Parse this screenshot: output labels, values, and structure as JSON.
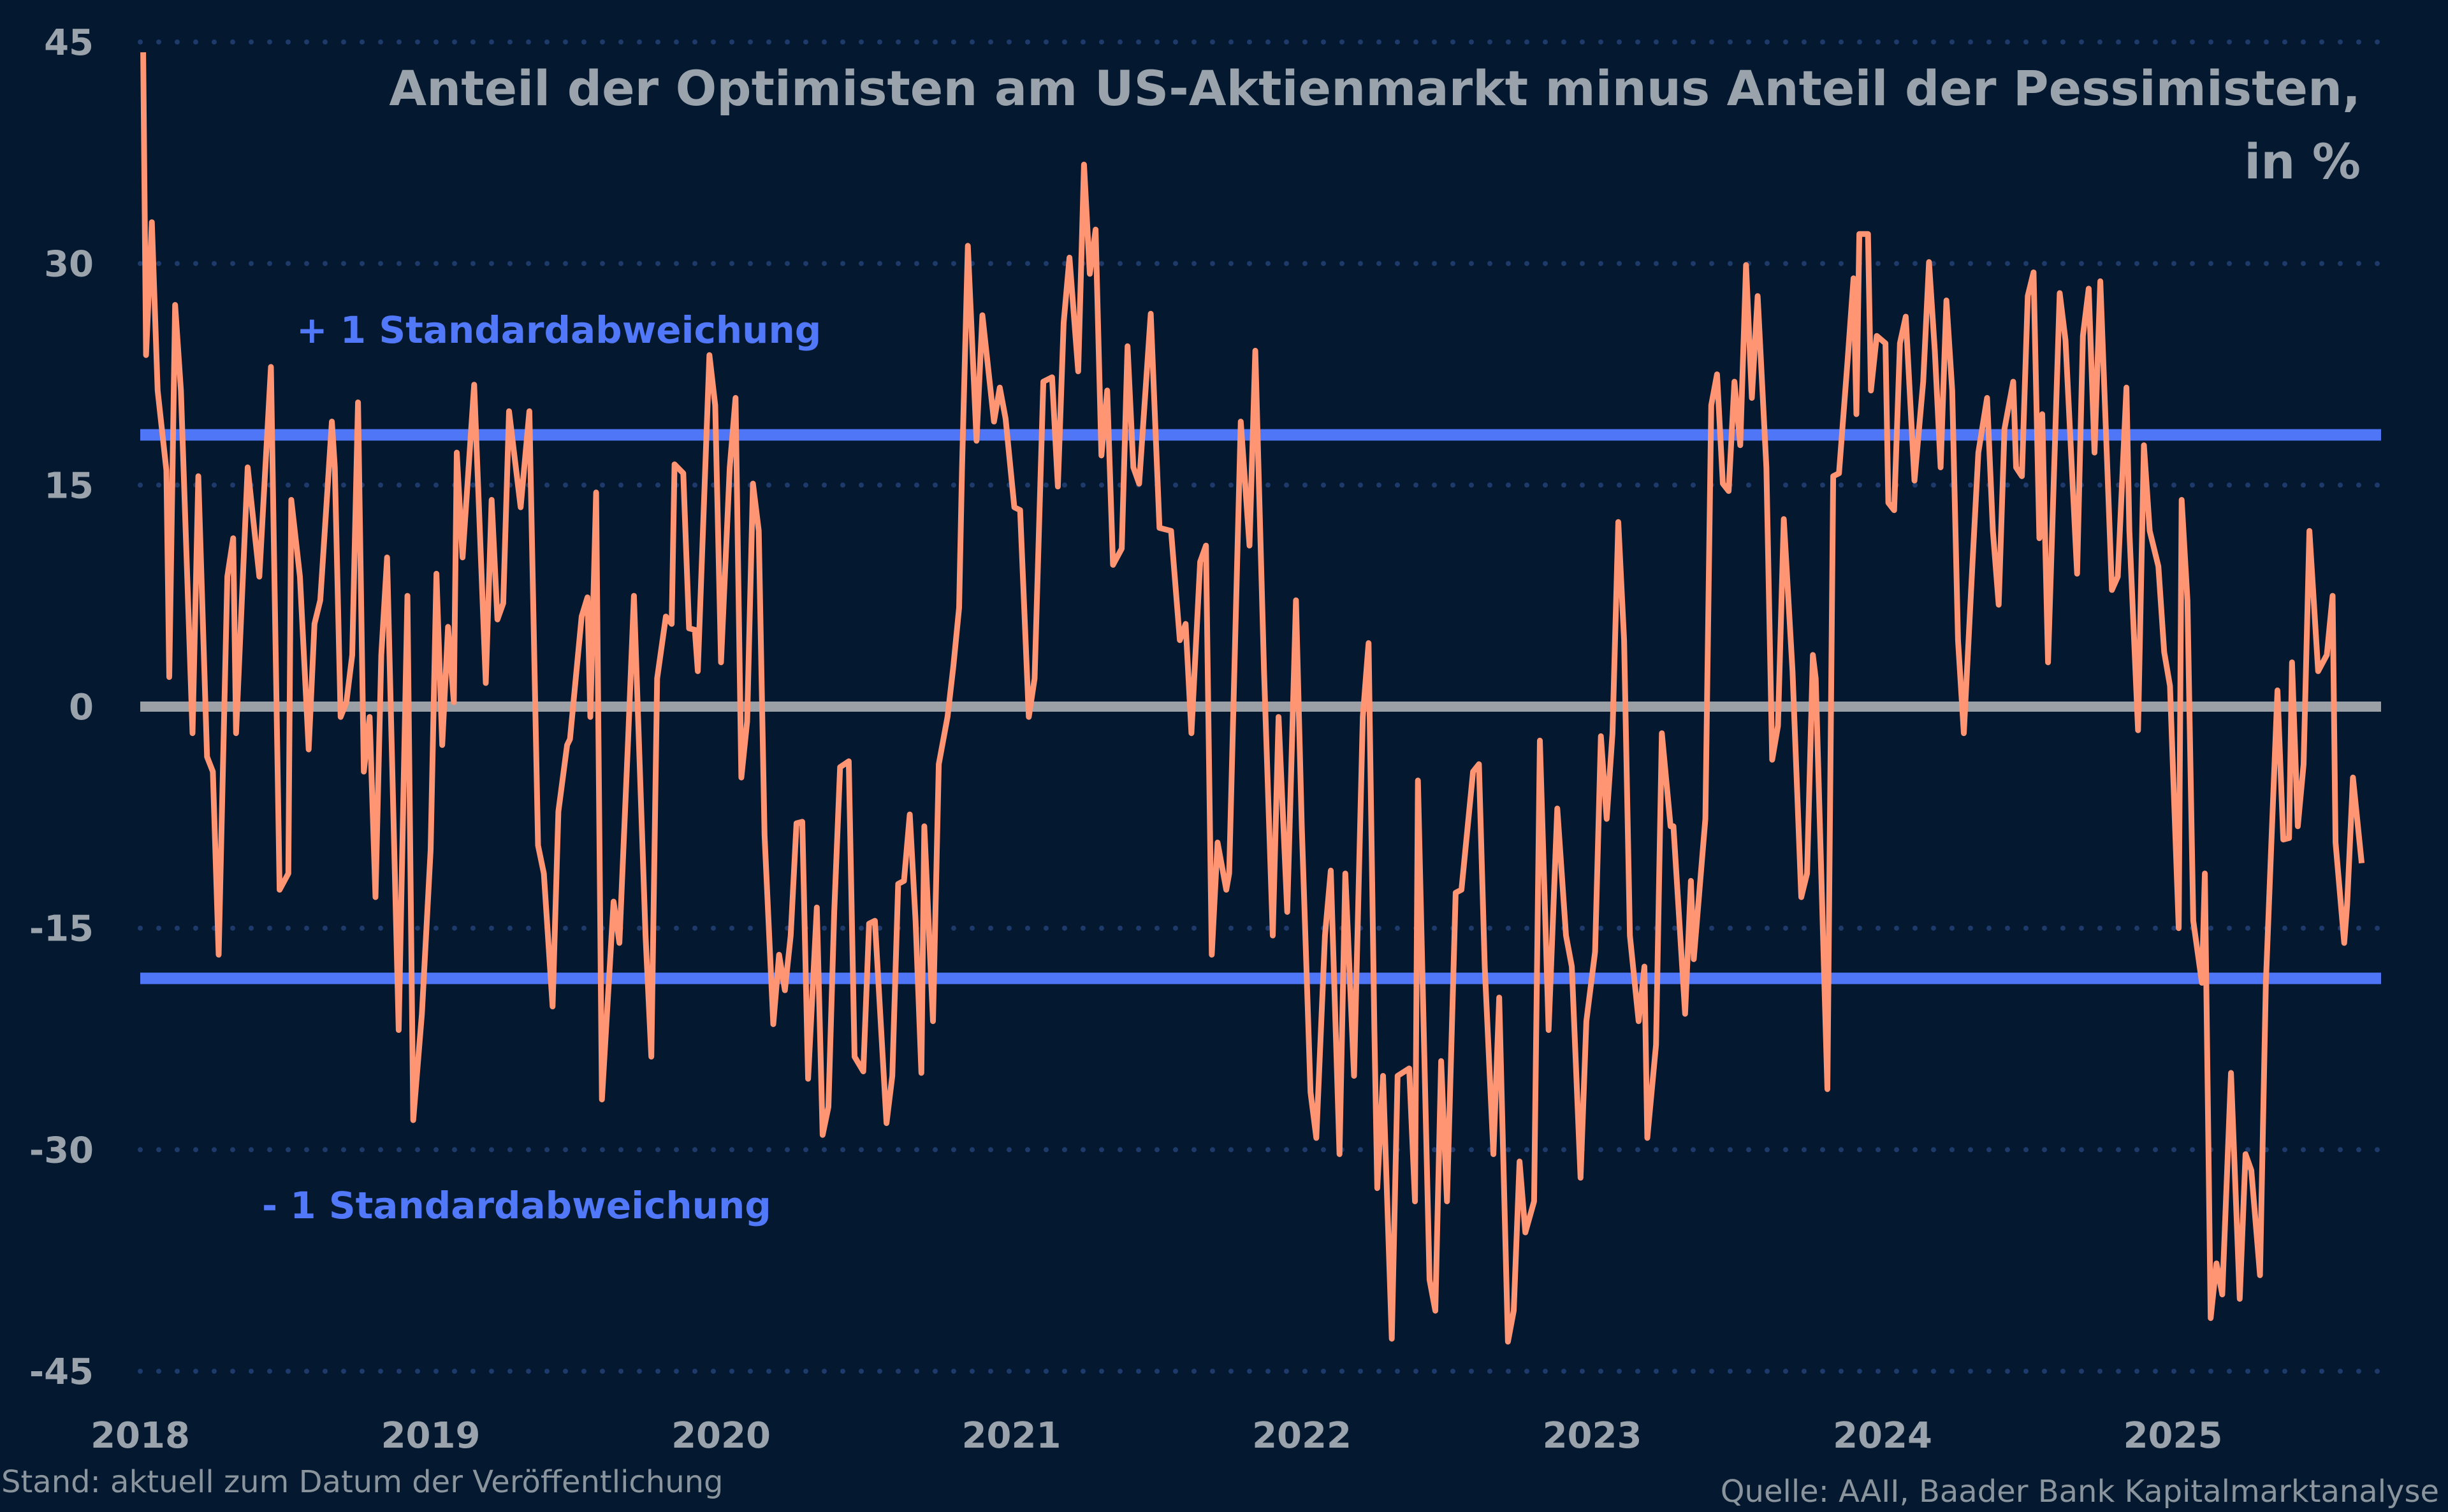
{
  "chart_data": {
    "type": "line",
    "title": "Anteil der Optimisten am US-Aktienmarkt minus Anteil der Pessimisten,",
    "title_line2": "in %",
    "xlabel": "",
    "ylabel": "",
    "ylim": [
      -45,
      45
    ],
    "yticks": [
      45,
      30,
      15,
      0,
      -15,
      -30,
      -45
    ],
    "xlim": [
      2018,
      2025.8
    ],
    "xticks": [
      "2018",
      "2019",
      "2020",
      "2021",
      "2022",
      "2023",
      "2024",
      "2025"
    ],
    "grid": "horizontal dotted",
    "colors": {
      "background": "#041830",
      "series": "#ff9573",
      "std_lines": "#4f76f6",
      "zero_line": "#9aa0a6",
      "grid": "#1d3a6b",
      "text": "#9aa3ab",
      "std_text": "#5078f8"
    },
    "reference_lines": [
      {
        "label": "+ 1 Standardabweichung",
        "value": 18.4
      },
      {
        "label": "- 1 Standardabweichung",
        "value": -18.4
      },
      {
        "label": "",
        "value": 0
      }
    ],
    "series": [
      {
        "x": [
          2018.01,
          2018.02,
          2018.04,
          2018.06,
          2018.09,
          2018.1,
          2018.12,
          2018.14,
          2018.18,
          2018.2,
          2018.23,
          2018.25,
          2018.27,
          2018.3,
          2018.32,
          2018.33,
          2018.37,
          2018.41,
          2018.45,
          2018.48,
          2018.51,
          2018.52,
          2018.55,
          2018.58,
          2018.6,
          2018.62,
          2018.66,
          2018.67,
          2018.69,
          2018.71,
          2018.73,
          2018.75,
          2018.77,
          2018.79,
          2018.81,
          2018.83,
          2018.85,
          2018.89,
          2018.92,
          2018.94,
          2018.97,
          2019.0,
          2019.02,
          2019.04,
          2019.06,
          2019.08,
          2019.09,
          2019.11,
          2019.15,
          2019.19,
          2019.21,
          2019.23,
          2019.25,
          2019.27,
          2019.31,
          2019.34,
          2019.37,
          2019.39,
          2019.42,
          2019.44,
          2019.47,
          2019.48,
          2019.52,
          2019.54,
          2019.55,
          2019.57,
          2019.59,
          2019.63,
          2019.65,
          2019.68,
          2019.7,
          2019.74,
          2019.76,
          2019.78,
          2019.81,
          2019.83,
          2019.84,
          2019.87,
          2019.89,
          2019.91,
          2019.92,
          2019.96,
          2019.98,
          2020.0,
          2020.03,
          2020.05,
          2020.07,
          2020.09,
          2020.11,
          2020.13,
          2020.15,
          2020.18,
          2020.2,
          2020.22,
          2020.24,
          2020.26,
          2020.28,
          2020.3,
          2020.33,
          2020.35,
          2020.37,
          2020.39,
          2020.41,
          2020.44,
          2020.46,
          2020.49,
          2020.51,
          2020.53,
          2020.57,
          2020.59,
          2020.61,
          2020.63,
          2020.65,
          2020.67,
          2020.69,
          2020.7,
          2020.73,
          2020.75,
          2020.78,
          2020.8,
          2020.82,
          2020.83,
          2020.85,
          2020.88,
          2020.9,
          2020.94,
          2020.96,
          2020.98,
          2021.01,
          2021.03,
          2021.06,
          2021.08,
          2021.11,
          2021.14,
          2021.16,
          2021.18,
          2021.2,
          2021.23,
          2021.25,
          2021.27,
          2021.29,
          2021.31,
          2021.33,
          2021.35,
          2021.38,
          2021.4,
          2021.42,
          2021.44,
          2021.48,
          2021.51,
          2021.55,
          2021.58,
          2021.6,
          2021.62,
          2021.65,
          2021.67,
          2021.69,
          2021.71,
          2021.74,
          2021.75,
          2021.79,
          2021.82,
          2021.84,
          2021.87,
          2021.9,
          2021.92,
          2021.95,
          2021.98,
          2022.0,
          2022.03,
          2022.05,
          2022.08,
          2022.1,
          2022.13,
          2022.15,
          2022.18,
          2022.21,
          2022.23,
          2022.25,
          2022.26,
          2022.28,
          2022.31,
          2022.33,
          2022.37,
          2022.39,
          2022.4,
          2022.44,
          2022.46,
          2022.48,
          2022.5,
          2022.53,
          2022.55,
          2022.59,
          2022.61,
          2022.63,
          2022.66,
          2022.68,
          2022.71,
          2022.73,
          2022.75,
          2022.77,
          2022.8,
          2022.82,
          2022.85,
          2022.88,
          2022.91,
          2022.93,
          2022.96,
          2022.98,
          2023.01,
          2023.03,
          2023.05,
          2023.07,
          2023.09,
          2023.11,
          2023.13,
          2023.16,
          2023.18,
          2023.19,
          2023.22,
          2023.24,
          2023.27,
          2023.28,
          2023.32,
          2023.34,
          2023.35,
          2023.39,
          2023.41,
          2023.43,
          2023.45,
          2023.47,
          2023.49,
          2023.51,
          2023.53,
          2023.55,
          2023.57,
          2023.6,
          2023.62,
          2023.64,
          2023.66,
          2023.69,
          2023.72,
          2023.74,
          2023.76,
          2023.77,
          2023.81,
          2023.83,
          2023.85,
          2023.88,
          2023.9,
          2023.91,
          2023.92,
          2023.95,
          2023.96,
          2023.98,
          2024.01,
          2024.02,
          2024.04,
          2024.06,
          2024.08,
          2024.11,
          2024.14,
          2024.16,
          2024.18,
          2024.2,
          2024.22,
          2024.24,
          2024.26,
          2024.28,
          2024.31,
          2024.33,
          2024.36,
          2024.38,
          2024.4,
          2024.42,
          2024.45,
          2024.46,
          2024.48,
          2024.5,
          2024.52,
          2024.54,
          2024.55,
          2024.57,
          2024.61,
          2024.63,
          2024.67,
          2024.69,
          2024.71,
          2024.73,
          2024.75,
          2024.79,
          2024.81,
          2024.84,
          2024.85,
          2024.88,
          2024.9,
          2024.92,
          2024.95,
          2024.97,
          2024.99,
          2025.02,
          2025.03,
          2025.05,
          2025.07,
          2025.1,
          2025.11,
          2025.13,
          2025.15,
          2025.17,
          2025.2,
          2025.23,
          2025.25,
          2025.27,
          2025.3,
          2025.32,
          2025.34,
          2025.36,
          2025.38,
          2025.4,
          2025.41,
          2025.43,
          2025.45,
          2025.47,
          2025.5,
          2025.53,
          2025.55,
          2025.56,
          2025.59,
          2025.6,
          2025.62,
          2025.65
        ],
        "y": [
          44.3,
          23.8,
          32.8,
          21.4,
          16,
          2,
          27.2,
          21.4,
          -1.8,
          15.6,
          -3.4,
          -4.4,
          -16.8,
          8.8,
          11.4,
          -1.8,
          16.2,
          8.8,
          23,
          -12.4,
          -11.3,
          14,
          8.8,
          -2.9,
          5.6,
          7.2,
          19.3,
          16.2,
          -0.7,
          0.3,
          3.5,
          20.6,
          -4.4,
          -0.7,
          -12.9,
          3.5,
          10.1,
          -21.9,
          7.5,
          -28,
          -20.8,
          -9.7,
          9,
          -2.6,
          5.4,
          0.3,
          17.2,
          10.1,
          21.8,
          1.6,
          14,
          5.9,
          7,
          20,
          13.5,
          20,
          -9.4,
          -11.3,
          -20.3,
          -7.1,
          -2.6,
          -2.2,
          6.1,
          7.4,
          -0.7,
          14.5,
          -26.6,
          -13.2,
          -16,
          -2.3,
          7.5,
          -15.5,
          -23.7,
          1.9,
          6.1,
          5.6,
          16.4,
          15.8,
          5.3,
          5.2,
          2.4,
          23.8,
          20.4,
          3,
          16.2,
          20.9,
          -4.8,
          -1,
          15.1,
          11.9,
          -8.7,
          -21.5,
          -16.8,
          -19.2,
          -15.5,
          -7.9,
          -7.8,
          -25.2,
          -13.6,
          -29,
          -27.1,
          -13.9,
          -4.1,
          -3.7,
          -23.7,
          -24.7,
          -14.7,
          -14.5,
          -28.2,
          -25,
          -12,
          -11.8,
          -7.3,
          -14.5,
          -24.8,
          -8.1,
          -21.3,
          -3.9,
          -0.7,
          2.7,
          6.7,
          16.2,
          31.2,
          18,
          26.5,
          19.3,
          21.6,
          19.5,
          13.5,
          13.3,
          -0.7,
          1.9,
          22,
          22.3,
          14.9,
          26,
          30.4,
          22.7,
          36.7,
          29.3,
          32.3,
          17,
          21.4,
          9.6,
          10.7,
          24.4,
          16.2,
          15.1,
          26.6,
          12.1,
          11.9,
          4.5,
          5.6,
          -1.8,
          9.8,
          10.9,
          -16.8,
          -9.2,
          -12.4,
          -11.3,
          19.3,
          10.9,
          24.1,
          2.4,
          -15.5,
          -0.7,
          -13.9,
          7.2,
          -8.1,
          -26.1,
          -29.2,
          -15.5,
          -11.1,
          -30.3,
          -11.3,
          -25,
          -0.7,
          4.3,
          -21.9,
          -32.6,
          -25,
          -42.8,
          -25,
          -24.5,
          -33.5,
          -5,
          -38.8,
          -40.9,
          -24,
          -33.5,
          -12.6,
          -12.4,
          -4.4,
          -3.9,
          -17.6,
          -30.3,
          -19.7,
          -43,
          -40.9,
          -30.8,
          -35.6,
          -33.5,
          -2.3,
          -21.9,
          -6.9,
          -15.5,
          -17.6,
          -31.9,
          -21.3,
          -16.6,
          -2,
          -7.6,
          -1.8,
          12.5,
          4.5,
          -15.5,
          -21.3,
          -17.6,
          -29.2,
          -22.9,
          -1.8,
          -8.1,
          -8.1,
          -20.8,
          -11.8,
          -17.1,
          -7.6,
          20.4,
          22.5,
          15.1,
          14.6,
          22,
          17.7,
          29.9,
          20.9,
          27.8,
          16.2,
          -3.6,
          -1.3,
          12.7,
          2.4,
          -12.9,
          -11.3,
          3.5,
          1.9,
          -25.9,
          15.6,
          15.8,
          23.5,
          29,
          19.8,
          32,
          32,
          21.4,
          25.1,
          24.6,
          13.8,
          13.3,
          24.6,
          26.4,
          15.3,
          22,
          30.1,
          24.1,
          16.2,
          27.5,
          21.4,
          4.5,
          -1.8,
          9.8,
          17.2,
          20.9,
          11.9,
          6.9,
          18.8,
          22,
          16.2,
          15.6,
          27.8,
          29.4,
          11.4,
          19.8,
          3,
          28,
          24.8,
          9,
          25.1,
          28.3,
          17.2,
          28.8,
          7.9,
          8.8,
          21.6,
          11.9,
          -1.6,
          17.7,
          11.9,
          9.5,
          3.7,
          1.4,
          -15,
          14,
          7.2,
          -14.5,
          -18.7,
          -11.3,
          -41.4,
          -37.7,
          -39.8,
          -24.8,
          -40.1,
          -30.3,
          -31.4,
          -38.5,
          -18.7,
          -8.7,
          1.1,
          -9,
          -8.9,
          3,
          -8.1,
          -3.9,
          11.9,
          2.4,
          3.5,
          7.5,
          -9.2,
          -16,
          -13.4,
          -4.8,
          -10.6
        ]
      }
    ]
  },
  "footer": {
    "left": "Stand: aktuell zum Datum der Veröffentlichung",
    "right": "Quelle: AAII, Baader Bank Kapitalmarktanalyse"
  }
}
